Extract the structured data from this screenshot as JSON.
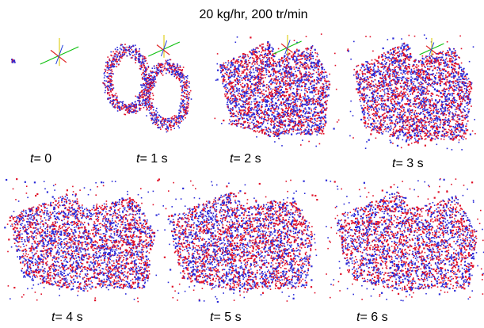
{
  "title": "20 kg/hr, 200  tr/min",
  "colors": {
    "particle_red": "#e01028",
    "particle_blue": "#2a2ad8",
    "axis_green": "#10c010",
    "axis_yellow": "#e0d020",
    "axis_red": "#e02020",
    "axis_blue": "#2040e0"
  },
  "panels": [
    {
      "t_symbol": "t",
      "eq": "= 0"
    },
    {
      "t_symbol": "t",
      "eq": "= 1 s"
    },
    {
      "t_symbol": "t",
      "eq": "= 2 s"
    },
    {
      "t_symbol": "t",
      "eq": "= 3 s"
    },
    {
      "t_symbol": "t",
      "eq": "= 4 s"
    },
    {
      "t_symbol": "t",
      "eq": "= 5 s"
    },
    {
      "t_symbol": "t",
      "eq": "= 6 s"
    }
  ]
}
